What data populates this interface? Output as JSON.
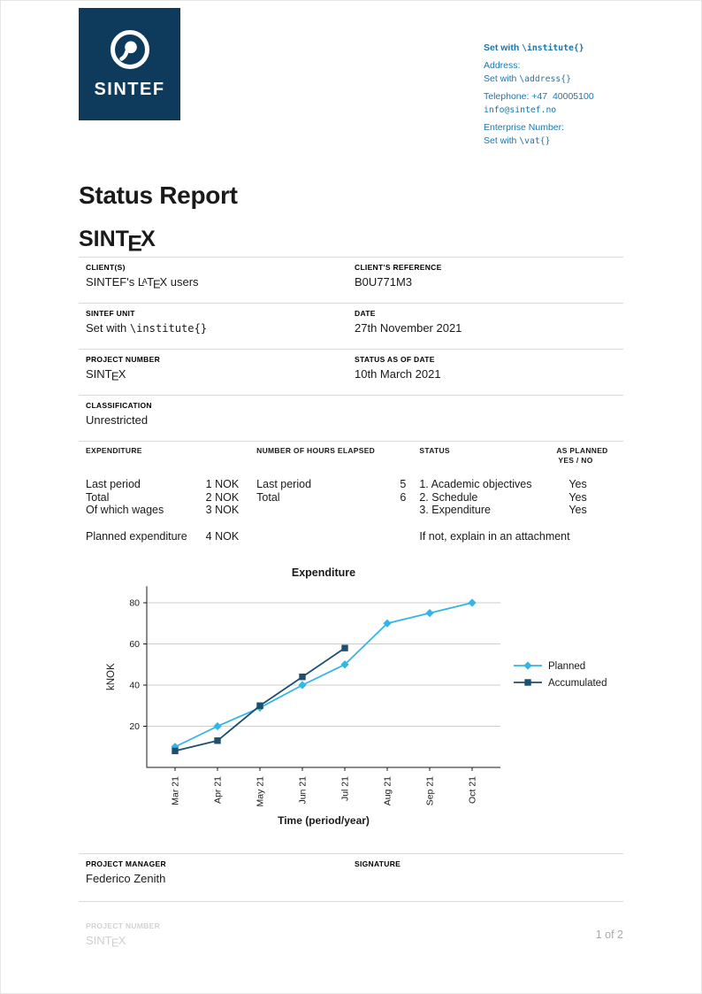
{
  "colors": {
    "brand_blue": "#0e3a5c",
    "link_blue": "#1c76ad",
    "planned": "#33b5e5",
    "accumulated": "#1d4f6f"
  },
  "logo": {
    "text": "SINTEF"
  },
  "contact": {
    "line1_pre": "Set with ",
    "line1_code": "\\institute{}",
    "address_label": "Address:",
    "address_pre": "Set with ",
    "address_code": "\\address{}",
    "telephone": "Telephone: +47  40005100",
    "email": "info@sintef.no",
    "enterprise_label": "Enterprise Number:",
    "vat_pre": "Set with ",
    "vat_code": "\\vat{}"
  },
  "titles": {
    "report": "Status Report",
    "sintex_pre": "SINT",
    "sintex_e": "E",
    "sintex_x": "X"
  },
  "info_rows": {
    "clients_label": "CLIENT(S)",
    "clients_pre": "SINTEF's ",
    "latex_l": "L",
    "latex_a": "A",
    "latex_t": "T",
    "latex_e": "E",
    "latex_x": "X",
    "clients_post": " users",
    "client_ref_label": "CLIENT'S REFERENCE",
    "client_ref_value": "B0U771M3",
    "unit_label": "SINTEF UNIT",
    "unit_pre": "Set with ",
    "unit_code": "\\institute{}",
    "date_label": "DATE",
    "date_value": "27th November 2021",
    "project_label": "PROJECT NUMBER",
    "project_pre": "SINT",
    "project_e": "E",
    "project_x": "X",
    "status_date_label": "STATUS AS OF DATE",
    "status_date_value": "10th March 2021",
    "classification_label": "CLASSIFICATION",
    "classification_value": "Unrestricted"
  },
  "exp_table": {
    "h_expenditure": "EXPENDITURE",
    "h_hours": "NUMBER OF HOURS ELAPSED",
    "h_status": "STATUS",
    "h_planned1": "AS PLANNED",
    "h_planned2": "YES / NO",
    "exp_rows": [
      {
        "label": "Last period",
        "value": "1 NOK"
      },
      {
        "label": "Total",
        "value": "2 NOK"
      },
      {
        "label": "Of which wages",
        "value": "3 NOK"
      }
    ],
    "planned_row": {
      "label": "Planned expenditure",
      "value": "4 NOK"
    },
    "hours_rows": [
      {
        "label": "Last period",
        "value": "5"
      },
      {
        "label": "Total",
        "value": "6"
      }
    ],
    "status_rows": [
      {
        "label": "1. Academic objectives",
        "value": "Yes"
      },
      {
        "label": "2. Schedule",
        "value": "Yes"
      },
      {
        "label": "3. Expenditure",
        "value": "Yes"
      }
    ],
    "status_note": "If not, explain in an attachment"
  },
  "chart_data": {
    "type": "line",
    "title": "Expenditure",
    "xlabel": "Time (period/year)",
    "ylabel": "kNOK",
    "categories": [
      "Mar 21",
      "Apr 21",
      "May 21",
      "Jun 21",
      "Jul 21",
      "Aug 21",
      "Sep 21",
      "Oct 21"
    ],
    "series": [
      {
        "name": "Planned",
        "color": "#33b5e5",
        "marker": "diamond",
        "values": [
          10,
          20,
          29,
          40,
          50,
          70,
          75,
          80
        ]
      },
      {
        "name": "Accumulated",
        "color": "#1d4f6f",
        "marker": "square",
        "values": [
          8,
          13,
          30,
          44,
          58
        ]
      }
    ],
    "yticks": [
      20,
      40,
      60,
      80
    ],
    "ylim": [
      0,
      88
    ],
    "grid": "horizontal",
    "legend_position": "right"
  },
  "signoff": {
    "pm_label": "PROJECT MANAGER",
    "pm_name": "Federico Zenith",
    "signature_label": "SIGNATURE"
  },
  "footer": {
    "label": "PROJECT NUMBER",
    "value_pre": "SINT",
    "value_e": "E",
    "value_x": "X",
    "page": "1 of 2"
  }
}
